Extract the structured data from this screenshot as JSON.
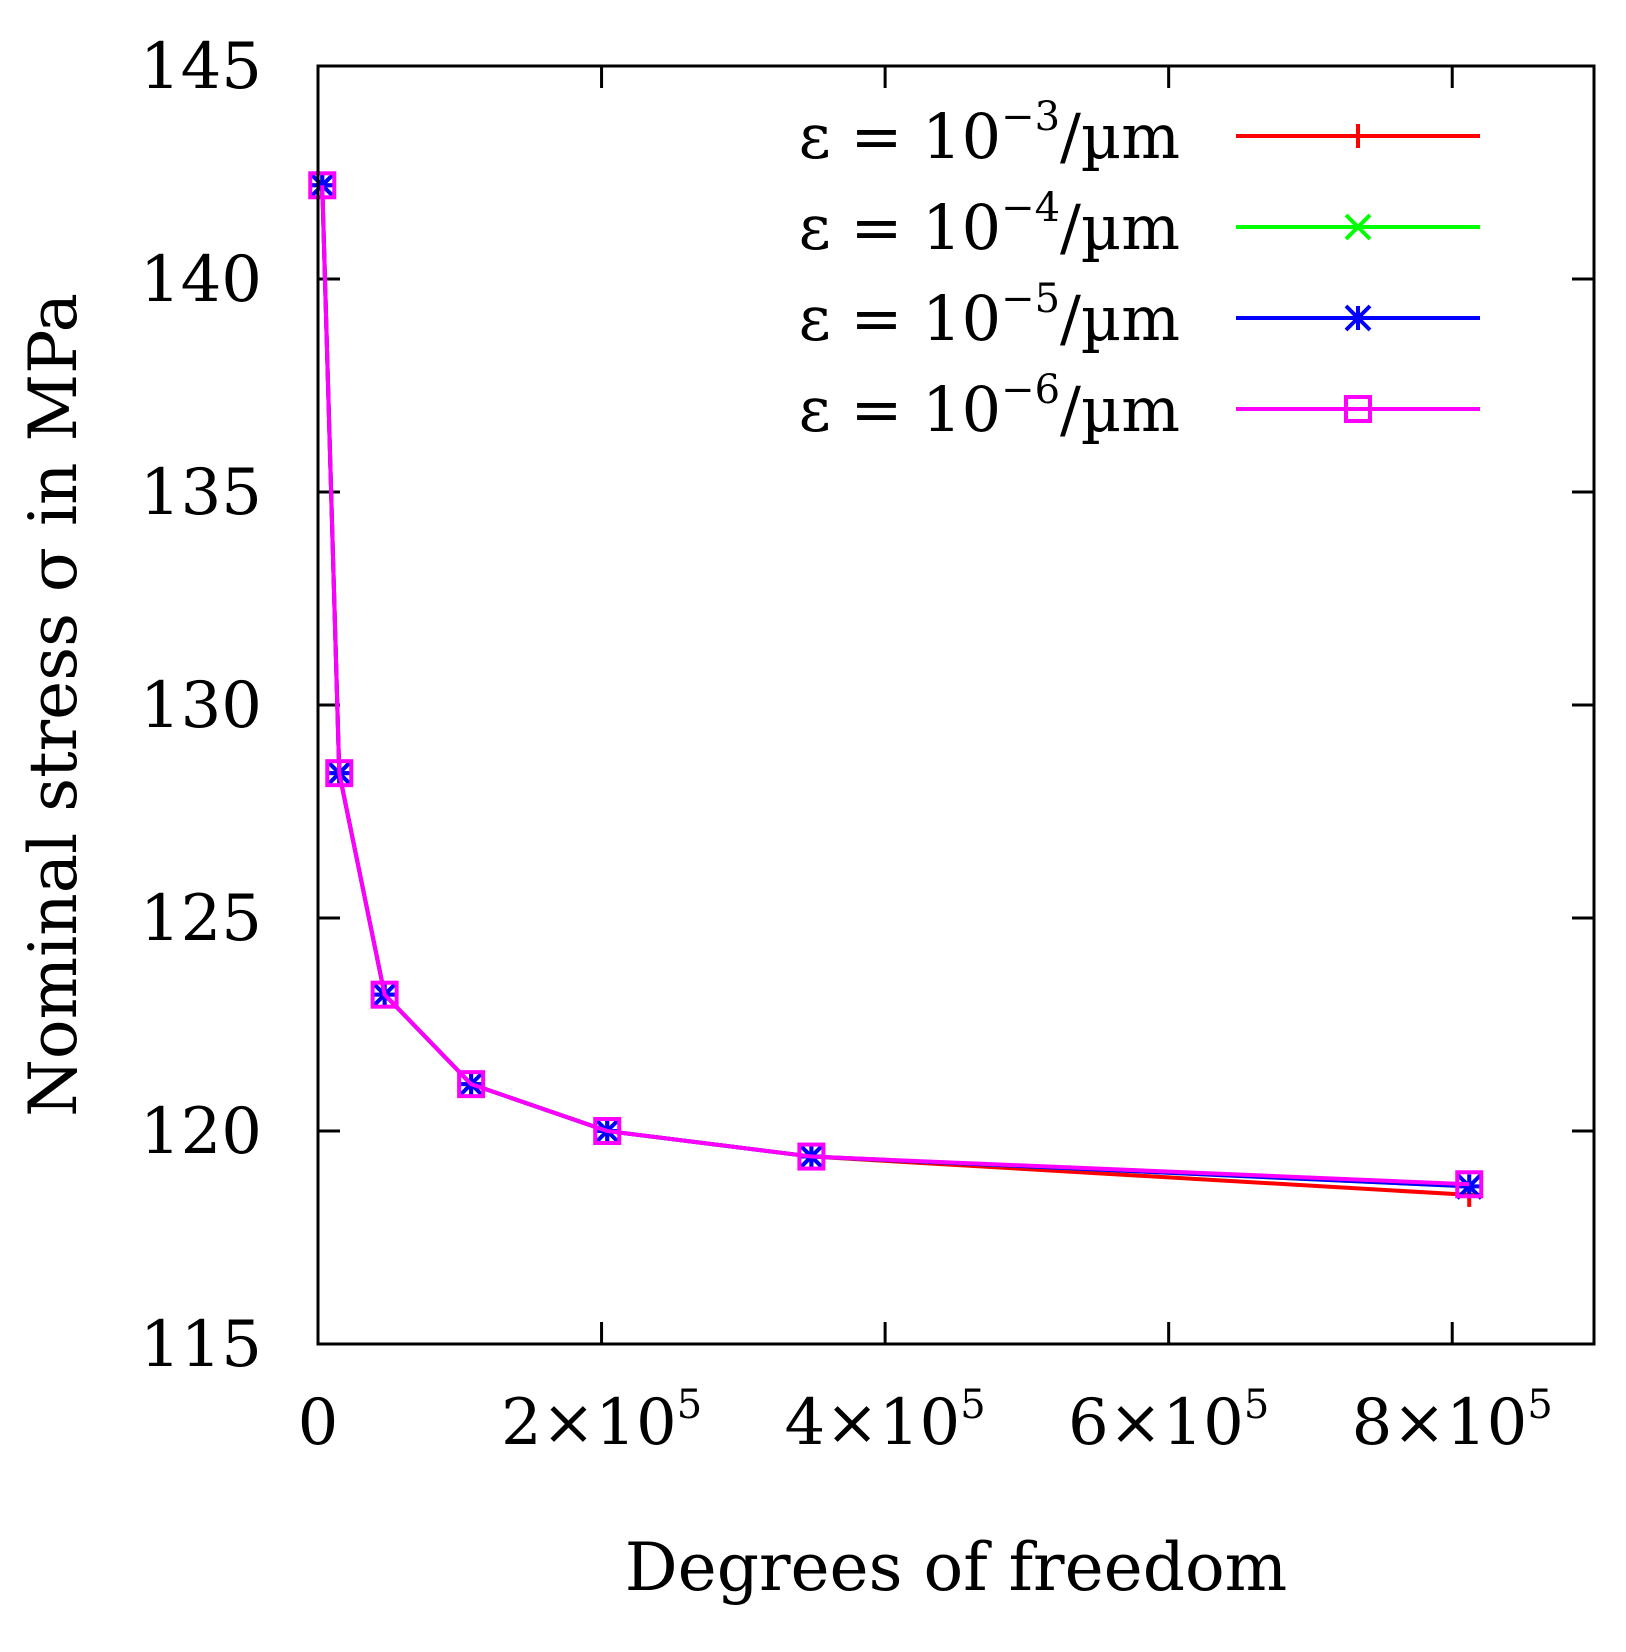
{
  "chart_data": {
    "type": "line",
    "title": "",
    "xlabel": "Degrees of freedom",
    "ylabel": "Nominal stress σ in MPa",
    "xlim": [
      0,
      900000
    ],
    "ylim": [
      115,
      145
    ],
    "grid": false,
    "legend_position": "top-right",
    "x_ticks": [
      {
        "value": 0,
        "base": "0",
        "exp": ""
      },
      {
        "value": 200000,
        "base": "2×10",
        "exp": "5"
      },
      {
        "value": 400000,
        "base": "4×10",
        "exp": "5"
      },
      {
        "value": 600000,
        "base": "6×10",
        "exp": "5"
      },
      {
        "value": 800000,
        "base": "8×10",
        "exp": "5"
      }
    ],
    "y_ticks": [
      115,
      120,
      125,
      130,
      135,
      140,
      145
    ],
    "series": [
      {
        "name": "ε = 10−3/µm",
        "prefix": "ε = 10",
        "exp": "−3",
        "suffix": "/µm",
        "color": "#ff0000",
        "marker": "plus",
        "x": [
          3000,
          15000,
          47000,
          108000,
          204000,
          348000,
          812000
        ],
        "y": [
          142.2,
          128.4,
          123.2,
          121.1,
          120.0,
          119.4,
          118.5
        ]
      },
      {
        "name": "ε = 10−4/µm",
        "prefix": "ε = 10",
        "exp": "−4",
        "suffix": "/µm",
        "color": "#00ff00",
        "marker": "cross",
        "x": [
          3000,
          15000,
          47000,
          108000,
          204000,
          348000,
          812000
        ],
        "y": [
          142.2,
          128.4,
          123.2,
          121.1,
          120.0,
          119.4,
          118.7
        ]
      },
      {
        "name": "ε = 10−5/µm",
        "prefix": "ε = 10",
        "exp": "−5",
        "suffix": "/µm",
        "color": "#0000ff",
        "marker": "star",
        "x": [
          3000,
          15000,
          47000,
          108000,
          204000,
          348000,
          812000
        ],
        "y": [
          142.2,
          128.4,
          123.2,
          121.1,
          120.0,
          119.4,
          118.7
        ]
      },
      {
        "name": "ε = 10−6/µm",
        "prefix": "ε = 10",
        "exp": "−6",
        "suffix": "/µm",
        "color": "#ff00ff",
        "marker": "square",
        "x": [
          3000,
          15000,
          47000,
          108000,
          204000,
          348000,
          812000
        ],
        "y": [
          142.2,
          128.4,
          123.2,
          121.1,
          120.0,
          119.4,
          118.75
        ]
      }
    ]
  }
}
